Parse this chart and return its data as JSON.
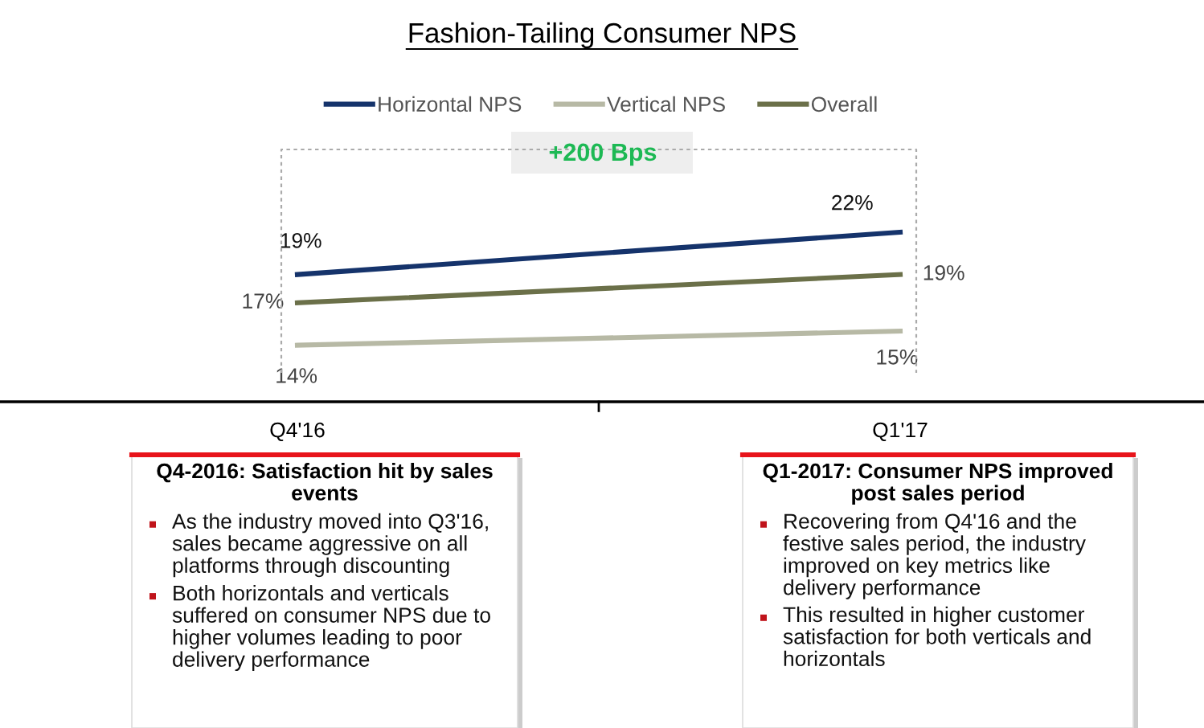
{
  "chart_data": {
    "type": "line",
    "title": "Fashion-Tailing Consumer NPS",
    "categories": [
      "Q4'16",
      "Q1'17"
    ],
    "series": [
      {
        "name": "Horizontal NPS",
        "color": "#15336b",
        "values": [
          19,
          22
        ],
        "value_labels": [
          "19%",
          "22%"
        ]
      },
      {
        "name": "Vertical NPS",
        "color": "#b7b9a5",
        "values": [
          14,
          15
        ],
        "value_labels": [
          "14%",
          "15%"
        ]
      },
      {
        "name": "Overall",
        "color": "#6b7049",
        "values": [
          17,
          19
        ],
        "value_labels": [
          "17%",
          "19%"
        ]
      }
    ],
    "legend": "top",
    "marker": "none",
    "line_style": "solid",
    "grid": false,
    "tick_labels": "x",
    "annotations": [
      "+200 Bps",
      "Q4-2016: Satisfaction hit by sales events",
      "As the industry moved into Q3'16, sales became aggressive on all platforms through discounting",
      "Both horizontals and verticals suffered on consumer NPS due to higher volumes leading to poor delivery performance",
      "Q1-2017: Consumer NPS improved post sales period",
      "Recovering from Q4'16 and the festive sales period, the industry improved on key metrics like delivery performance",
      "This resulted in higher customer satisfaction for both verticals and horizontals"
    ]
  }
}
